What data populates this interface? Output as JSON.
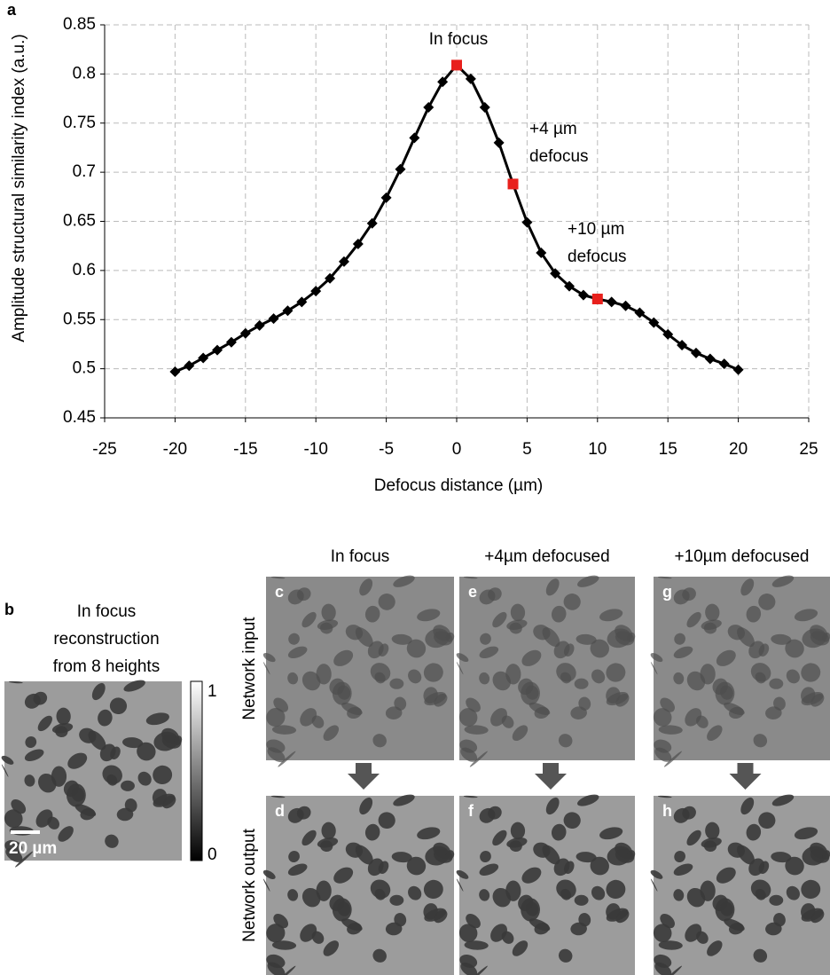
{
  "chart_data": {
    "type": "line",
    "panel_label": "a",
    "x": [
      -20,
      -19,
      -18,
      -17,
      -16,
      -15,
      -14,
      -13,
      -12,
      -11,
      -10,
      -9,
      -8,
      -7,
      -6,
      -5,
      -4,
      -3,
      -2,
      -1,
      0,
      1,
      2,
      3,
      4,
      5,
      6,
      7,
      8,
      9,
      10,
      11,
      12,
      13,
      14,
      15,
      16,
      17,
      18,
      19,
      20
    ],
    "values": [
      0.497,
      0.503,
      0.511,
      0.519,
      0.527,
      0.536,
      0.544,
      0.551,
      0.559,
      0.568,
      0.579,
      0.592,
      0.609,
      0.627,
      0.648,
      0.674,
      0.703,
      0.735,
      0.766,
      0.792,
      0.809,
      0.795,
      0.766,
      0.73,
      0.688,
      0.649,
      0.618,
      0.597,
      0.584,
      0.575,
      0.571,
      0.568,
      0.564,
      0.557,
      0.547,
      0.535,
      0.524,
      0.516,
      0.51,
      0.505,
      0.499
    ],
    "color": "#000000",
    "highlight_x": [
      0,
      4,
      10
    ],
    "highlight_color": "#e8201c",
    "xlim": [
      -25,
      25
    ],
    "ylim": [
      0.45,
      0.85
    ],
    "xticks": [
      -25,
      -20,
      -15,
      -10,
      -5,
      0,
      5,
      10,
      15,
      20,
      25
    ],
    "yticks": [
      0.45,
      0.5,
      0.55,
      0.6,
      0.65,
      0.7,
      0.75,
      0.8,
      0.85
    ],
    "grid": true,
    "xlabel": "Defocus distance (µm)",
    "ylabel": "Amplitude structural similarity index (a.u.)",
    "annotations": [
      {
        "lines": [
          "In focus"
        ]
      },
      {
        "lines": [
          "+4 µm",
          "defocus"
        ]
      },
      {
        "lines": [
          "+10 µm",
          "defocus"
        ]
      }
    ]
  },
  "figure": {
    "panel_b": {
      "label": "b",
      "title_lines": [
        "In focus",
        "reconstruction",
        "from 8 heights"
      ],
      "colorbar_max": "1",
      "colorbar_min": "0",
      "scale_bar": "20 µm"
    },
    "column_headers": [
      "In focus",
      "+4µm defocused",
      "+10µm defocused"
    ],
    "row_labels": [
      "Network input",
      "Network output"
    ],
    "panel_letters": [
      [
        "c",
        "e",
        "g"
      ],
      [
        "d",
        "f",
        "h"
      ]
    ]
  }
}
